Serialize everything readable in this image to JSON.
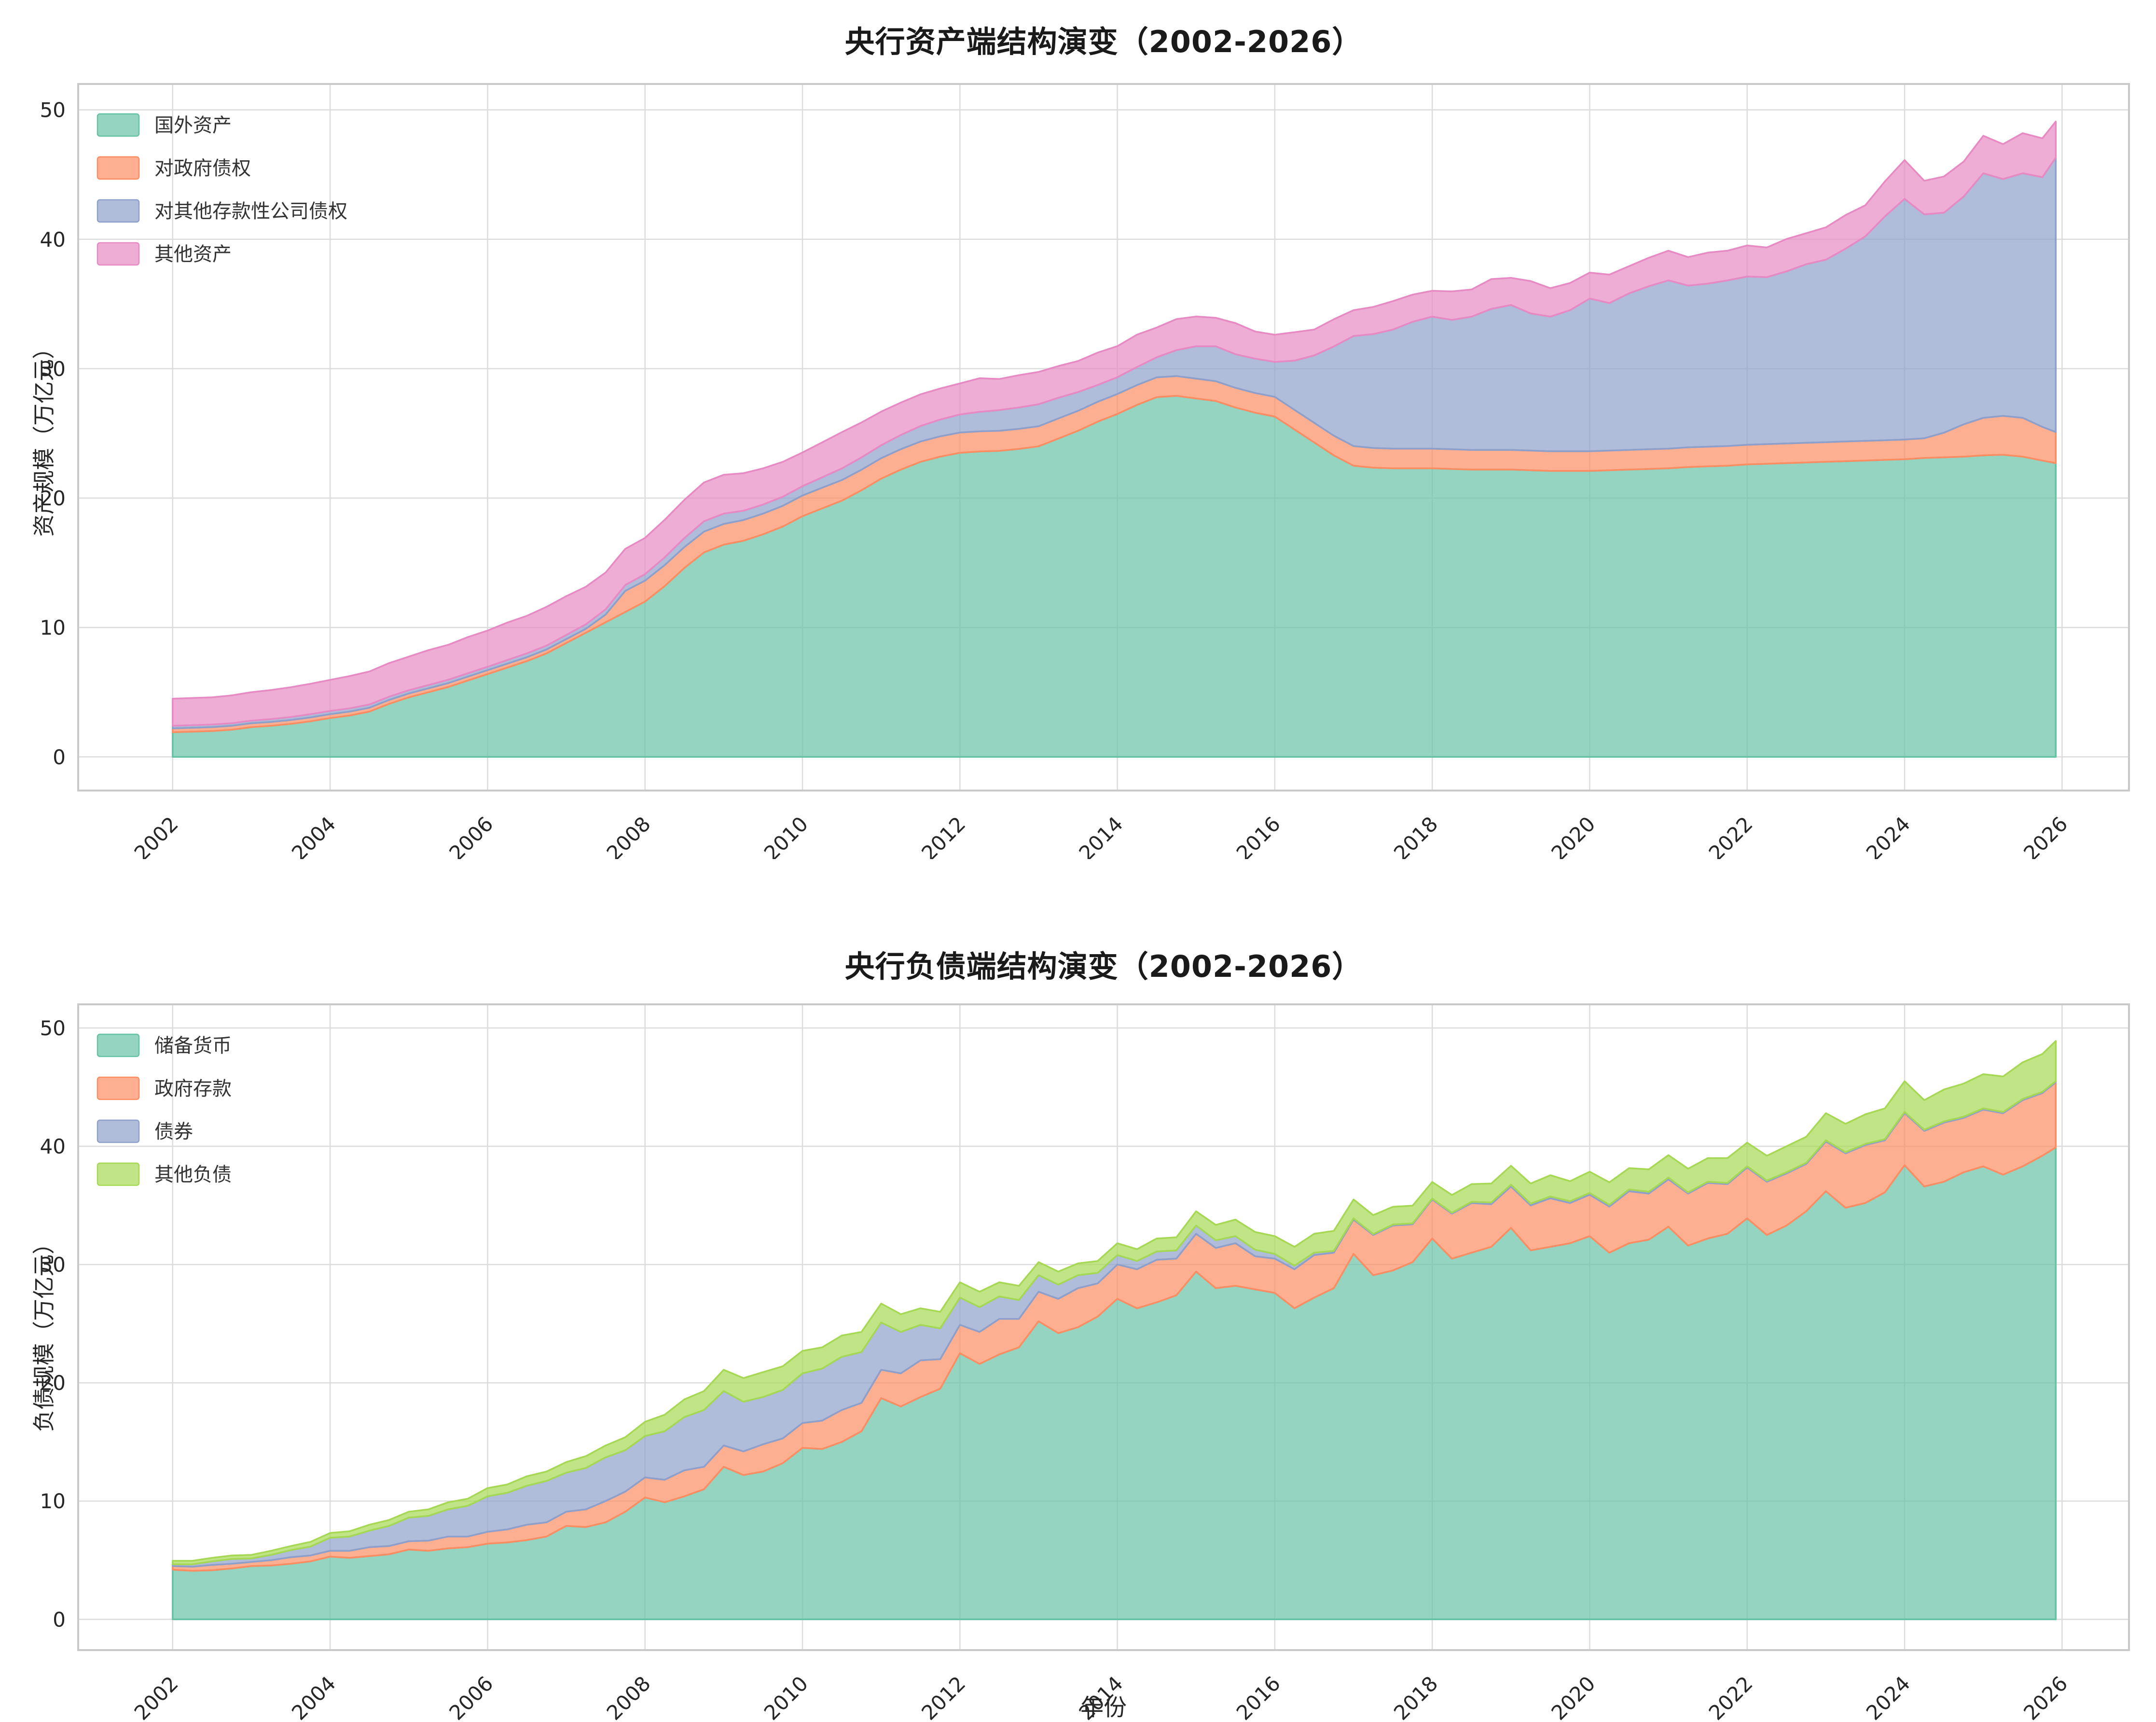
{
  "figure": {
    "background": "#ffffff",
    "grid_color": "#dcdcdc",
    "spine_color": "#c9c9c9",
    "tick_color": "#262626",
    "title_color": "#1a1a1a",
    "fill_opacity": 0.7
  },
  "chart_data": [
    {
      "type": "area",
      "stacked": true,
      "title": "央行资产端结构演变（2002-2026）",
      "xlabel": "",
      "ylabel": "资产规模（万亿元）",
      "legend_position": "upper-left",
      "grid": true,
      "xlim": [
        2000.8,
        2026.85
      ],
      "ylim": [
        -2.6,
        52
      ],
      "xticks": [
        2002,
        2004,
        2006,
        2008,
        2010,
        2012,
        2014,
        2016,
        2018,
        2020,
        2022,
        2024,
        2026
      ],
      "yticks": [
        0,
        10,
        20,
        30,
        40,
        50
      ],
      "x": [
        2002,
        2002.25,
        2002.5,
        2002.75,
        2003,
        2003.25,
        2003.5,
        2003.75,
        2004,
        2004.25,
        2004.5,
        2004.75,
        2005,
        2005.25,
        2005.5,
        2005.75,
        2006,
        2006.25,
        2006.5,
        2006.75,
        2007,
        2007.25,
        2007.5,
        2007.75,
        2008,
        2008.25,
        2008.5,
        2008.75,
        2009,
        2009.25,
        2009.5,
        2009.75,
        2010,
        2010.25,
        2010.5,
        2010.75,
        2011,
        2011.25,
        2011.5,
        2011.75,
        2012,
        2012.25,
        2012.5,
        2012.75,
        2013,
        2013.25,
        2013.5,
        2013.75,
        2014,
        2014.25,
        2014.5,
        2014.75,
        2015,
        2015.25,
        2015.5,
        2015.75,
        2016,
        2016.25,
        2016.5,
        2016.75,
        2017,
        2017.25,
        2017.5,
        2017.75,
        2018,
        2018.25,
        2018.5,
        2018.75,
        2019,
        2019.25,
        2019.5,
        2019.75,
        2020,
        2020.25,
        2020.5,
        2020.75,
        2021,
        2021.25,
        2021.5,
        2021.75,
        2022,
        2022.25,
        2022.5,
        2022.75,
        2023,
        2023.25,
        2023.5,
        2023.75,
        2024,
        2024.25,
        2024.5,
        2024.75,
        2025,
        2025.25,
        2025.5,
        2025.75,
        2025.92
      ],
      "series": [
        {
          "name": "国外资产",
          "color": "#66c2a5",
          "values": [
            1.9,
            1.95,
            2.0,
            2.1,
            2.3,
            2.4,
            2.55,
            2.75,
            3.0,
            3.2,
            3.5,
            4.1,
            4.6,
            5.0,
            5.4,
            5.9,
            6.4,
            6.9,
            7.4,
            8.0,
            8.8,
            9.6,
            10.4,
            11.2,
            12.0,
            13.2,
            14.6,
            15.8,
            16.4,
            16.7,
            17.2,
            17.8,
            18.6,
            19.2,
            19.8,
            20.6,
            21.5,
            22.2,
            22.8,
            23.2,
            23.5,
            23.6,
            23.65,
            23.8,
            24.0,
            24.6,
            25.2,
            25.9,
            26.5,
            27.2,
            27.8,
            27.9,
            27.7,
            27.5,
            27.0,
            26.6,
            26.3,
            25.3,
            24.3,
            23.3,
            22.5,
            22.35,
            22.3,
            22.3,
            22.3,
            22.25,
            22.2,
            22.2,
            22.2,
            22.15,
            22.1,
            22.1,
            22.1,
            22.15,
            22.2,
            22.25,
            22.3,
            22.4,
            22.45,
            22.5,
            22.6,
            22.65,
            22.7,
            22.75,
            22.8,
            22.85,
            22.9,
            22.95,
            23.0,
            23.1,
            23.15,
            23.2,
            23.3,
            23.35,
            23.2,
            22.9,
            22.7
          ]
        },
        {
          "name": "对政府债权",
          "color": "#fc8d62",
          "values": [
            0.3,
            0.3,
            0.3,
            0.3,
            0.3,
            0.3,
            0.3,
            0.3,
            0.3,
            0.3,
            0.3,
            0.3,
            0.3,
            0.3,
            0.3,
            0.3,
            0.3,
            0.3,
            0.3,
            0.3,
            0.3,
            0.3,
            0.6,
            1.63,
            1.62,
            1.62,
            1.61,
            1.61,
            1.6,
            1.6,
            1.6,
            1.6,
            1.6,
            1.6,
            1.59,
            1.59,
            1.58,
            1.58,
            1.57,
            1.57,
            1.56,
            1.56,
            1.55,
            1.55,
            1.55,
            1.55,
            1.54,
            1.54,
            1.54,
            1.53,
            1.53,
            1.53,
            1.53,
            1.53,
            1.52,
            1.52,
            1.52,
            1.52,
            1.52,
            1.52,
            1.52,
            1.52,
            1.52,
            1.52,
            1.52,
            1.52,
            1.52,
            1.52,
            1.52,
            1.52,
            1.52,
            1.52,
            1.52,
            1.52,
            1.52,
            1.52,
            1.52,
            1.52,
            1.52,
            1.52,
            1.52,
            1.52,
            1.52,
            1.52,
            1.52,
            1.52,
            1.52,
            1.52,
            1.52,
            1.52,
            1.9,
            2.5,
            2.9,
            3.0,
            3.0,
            2.6,
            2.4
          ]
        },
        {
          "name": "对其他存款性公司债权",
          "color": "#8da0cb",
          "values": [
            0.2,
            0.2,
            0.2,
            0.2,
            0.2,
            0.22,
            0.23,
            0.25,
            0.25,
            0.25,
            0.25,
            0.25,
            0.25,
            0.25,
            0.26,
            0.26,
            0.26,
            0.28,
            0.3,
            0.3,
            0.32,
            0.35,
            0.4,
            0.45,
            0.5,
            0.6,
            0.7,
            0.8,
            0.8,
            0.72,
            0.7,
            0.7,
            0.72,
            0.8,
            0.9,
            0.95,
            1.0,
            1.1,
            1.2,
            1.3,
            1.4,
            1.5,
            1.6,
            1.65,
            1.7,
            1.6,
            1.45,
            1.3,
            1.3,
            1.4,
            1.55,
            2.0,
            2.5,
            2.7,
            2.6,
            2.65,
            2.7,
            3.8,
            5.2,
            6.9,
            8.5,
            8.8,
            9.2,
            9.8,
            10.2,
            10.0,
            10.3,
            10.9,
            11.2,
            10.6,
            10.4,
            10.9,
            11.8,
            11.4,
            12.1,
            12.6,
            13.0,
            12.5,
            12.6,
            12.8,
            13.0,
            12.9,
            13.3,
            13.8,
            14.1,
            14.9,
            15.8,
            17.3,
            18.6,
            17.3,
            17.0,
            17.6,
            18.9,
            18.3,
            18.9,
            19.3,
            21.2
          ]
        },
        {
          "name": "其他资产",
          "color": "#e78ac3",
          "values": [
            2.1,
            2.1,
            2.1,
            2.15,
            2.2,
            2.25,
            2.3,
            2.35,
            2.4,
            2.5,
            2.55,
            2.6,
            2.6,
            2.7,
            2.7,
            2.8,
            2.8,
            2.9,
            2.9,
            3.0,
            3.0,
            2.9,
            2.85,
            2.8,
            2.8,
            2.9,
            2.95,
            3.0,
            3.0,
            2.9,
            2.8,
            2.7,
            2.6,
            2.7,
            2.8,
            2.7,
            2.6,
            2.5,
            2.45,
            2.4,
            2.4,
            2.6,
            2.4,
            2.5,
            2.5,
            2.45,
            2.4,
            2.5,
            2.4,
            2.5,
            2.3,
            2.4,
            2.3,
            2.2,
            2.4,
            2.1,
            2.1,
            2.2,
            2.0,
            2.1,
            2.0,
            2.1,
            2.2,
            2.1,
            2.0,
            2.2,
            2.1,
            2.3,
            2.1,
            2.5,
            2.2,
            2.1,
            2.0,
            2.2,
            2.1,
            2.2,
            2.3,
            2.2,
            2.4,
            2.3,
            2.4,
            2.3,
            2.5,
            2.4,
            2.5,
            2.6,
            2.4,
            2.7,
            3.0,
            2.6,
            2.8,
            2.7,
            2.9,
            2.7,
            3.1,
            3.0,
            2.8
          ]
        }
      ]
    },
    {
      "type": "area",
      "stacked": true,
      "title": "央行负债端结构演变（2002-2026）",
      "xlabel": "年份",
      "ylabel": "负债规模（万亿元）",
      "legend_position": "upper-left",
      "grid": true,
      "xlim": [
        2000.8,
        2026.85
      ],
      "ylim": [
        -2.6,
        52
      ],
      "xticks": [
        2002,
        2004,
        2006,
        2008,
        2010,
        2012,
        2014,
        2016,
        2018,
        2020,
        2022,
        2024,
        2026
      ],
      "yticks": [
        0,
        10,
        20,
        30,
        40,
        50
      ],
      "x": [
        2002,
        2002.25,
        2002.5,
        2002.75,
        2003,
        2003.25,
        2003.5,
        2003.75,
        2004,
        2004.25,
        2004.5,
        2004.75,
        2005,
        2005.25,
        2005.5,
        2005.75,
        2006,
        2006.25,
        2006.5,
        2006.75,
        2007,
        2007.25,
        2007.5,
        2007.75,
        2008,
        2008.25,
        2008.5,
        2008.75,
        2009,
        2009.25,
        2009.5,
        2009.75,
        2010,
        2010.25,
        2010.5,
        2010.75,
        2011,
        2011.25,
        2011.5,
        2011.75,
        2012,
        2012.25,
        2012.5,
        2012.75,
        2013,
        2013.25,
        2013.5,
        2013.75,
        2014,
        2014.25,
        2014.5,
        2014.75,
        2015,
        2015.25,
        2015.5,
        2015.75,
        2016,
        2016.25,
        2016.5,
        2016.75,
        2017,
        2017.25,
        2017.5,
        2017.75,
        2018,
        2018.25,
        2018.5,
        2018.75,
        2019,
        2019.25,
        2019.5,
        2019.75,
        2020,
        2020.25,
        2020.5,
        2020.75,
        2021,
        2021.25,
        2021.5,
        2021.75,
        2022,
        2022.25,
        2022.5,
        2022.75,
        2023,
        2023.25,
        2023.5,
        2023.75,
        2024,
        2024.25,
        2024.5,
        2024.75,
        2025,
        2025.25,
        2025.5,
        2025.75,
        2025.92
      ],
      "series": [
        {
          "name": "储备货币",
          "color": "#66c2a5",
          "values": [
            4.2,
            4.1,
            4.15,
            4.3,
            4.5,
            4.55,
            4.7,
            4.9,
            5.3,
            5.2,
            5.35,
            5.5,
            5.9,
            5.8,
            6.0,
            6.1,
            6.4,
            6.5,
            6.7,
            7.0,
            7.9,
            7.8,
            8.2,
            9.1,
            10.3,
            9.9,
            10.4,
            11.0,
            12.9,
            12.2,
            12.5,
            13.2,
            14.5,
            14.4,
            15.0,
            15.9,
            18.7,
            18.0,
            18.8,
            19.5,
            22.5,
            21.6,
            22.4,
            23.0,
            25.2,
            24.2,
            24.7,
            25.6,
            27.1,
            26.3,
            26.8,
            27.4,
            29.4,
            28.0,
            28.2,
            27.9,
            27.6,
            26.3,
            27.2,
            28.0,
            30.9,
            29.1,
            29.5,
            30.2,
            32.2,
            30.5,
            31.0,
            31.5,
            33.1,
            31.2,
            31.5,
            31.8,
            32.4,
            31.0,
            31.8,
            32.1,
            33.2,
            31.6,
            32.2,
            32.6,
            33.9,
            32.5,
            33.3,
            34.5,
            36.2,
            34.8,
            35.2,
            36.1,
            38.4,
            36.6,
            37.0,
            37.8,
            38.3,
            37.6,
            38.3,
            39.2,
            39.9
          ]
        },
        {
          "name": "政府存款",
          "color": "#fc8d62",
          "values": [
            0.3,
            0.35,
            0.45,
            0.4,
            0.35,
            0.45,
            0.55,
            0.5,
            0.5,
            0.6,
            0.75,
            0.7,
            0.7,
            0.85,
            1.0,
            0.9,
            1.0,
            1.1,
            1.3,
            1.2,
            1.2,
            1.5,
            1.8,
            1.7,
            1.7,
            1.9,
            2.2,
            1.9,
            1.8,
            2.0,
            2.3,
            2.1,
            2.1,
            2.4,
            2.7,
            2.4,
            2.4,
            2.8,
            3.1,
            2.5,
            2.4,
            2.7,
            3.0,
            2.4,
            2.5,
            2.9,
            3.3,
            2.8,
            2.9,
            3.3,
            3.6,
            3.1,
            3.2,
            3.4,
            3.6,
            2.8,
            2.9,
            3.3,
            3.6,
            3.0,
            2.9,
            3.4,
            3.8,
            3.2,
            3.3,
            3.8,
            4.2,
            3.6,
            3.5,
            3.8,
            4.1,
            3.4,
            3.5,
            3.9,
            4.4,
            3.9,
            4.0,
            4.4,
            4.7,
            4.2,
            4.3,
            4.5,
            4.4,
            4.0,
            4.2,
            4.6,
            4.9,
            4.4,
            4.4,
            4.7,
            5.0,
            4.6,
            4.8,
            5.2,
            5.6,
            5.3,
            5.5
          ]
        },
        {
          "name": "债券",
          "color": "#8da0cb",
          "values": [
            0.15,
            0.2,
            0.3,
            0.4,
            0.3,
            0.45,
            0.6,
            0.75,
            1.1,
            1.2,
            1.4,
            1.7,
            2.0,
            2.1,
            2.3,
            2.6,
            3.0,
            3.1,
            3.3,
            3.5,
            3.3,
            3.5,
            3.7,
            3.5,
            3.5,
            4.1,
            4.5,
            4.8,
            4.6,
            4.2,
            4.0,
            4.1,
            4.2,
            4.4,
            4.5,
            4.3,
            4.0,
            3.5,
            3.0,
            2.6,
            2.3,
            2.1,
            1.9,
            1.6,
            1.4,
            1.2,
            1.1,
            0.9,
            0.8,
            0.7,
            0.7,
            0.7,
            0.7,
            0.65,
            0.6,
            0.55,
            0.4,
            0.3,
            0.2,
            0.15,
            0.1,
            0.08,
            0.08,
            0.08,
            0.08,
            0.08,
            0.1,
            0.15,
            0.15,
            0.15,
            0.15,
            0.15,
            0.15,
            0.15,
            0.15,
            0.15,
            0.15,
            0.1,
            0.1,
            0.1,
            0.1,
            0.1,
            0.1,
            0.1,
            0.1,
            0.1,
            0.1,
            0.1,
            0.1,
            0.1,
            0.1,
            0.1,
            0.1,
            0.1,
            0.1,
            0.1,
            0.1
          ]
        },
        {
          "name": "其他负债",
          "color": "#a6d854",
          "values": [
            0.3,
            0.3,
            0.3,
            0.3,
            0.3,
            0.35,
            0.35,
            0.4,
            0.4,
            0.45,
            0.5,
            0.5,
            0.5,
            0.55,
            0.6,
            0.6,
            0.7,
            0.7,
            0.8,
            0.8,
            0.9,
            1.0,
            1.0,
            1.1,
            1.2,
            1.4,
            1.5,
            1.6,
            1.8,
            2.0,
            2.1,
            2.0,
            1.9,
            1.8,
            1.8,
            1.7,
            1.6,
            1.5,
            1.4,
            1.4,
            1.3,
            1.3,
            1.2,
            1.2,
            1.1,
            1.1,
            1.0,
            1.0,
            1.0,
            1.0,
            1.1,
            1.1,
            1.2,
            1.3,
            1.4,
            1.5,
            1.5,
            1.6,
            1.6,
            1.7,
            1.6,
            1.6,
            1.5,
            1.5,
            1.4,
            1.5,
            1.5,
            1.6,
            1.6,
            1.7,
            1.8,
            1.7,
            1.8,
            1.9,
            1.8,
            1.9,
            1.9,
            2.0,
            2.0,
            2.1,
            2.0,
            2.1,
            2.2,
            2.2,
            2.3,
            2.4,
            2.5,
            2.6,
            2.6,
            2.5,
            2.7,
            2.8,
            2.9,
            3.0,
            3.1,
            3.2,
            3.4
          ]
        }
      ]
    }
  ]
}
